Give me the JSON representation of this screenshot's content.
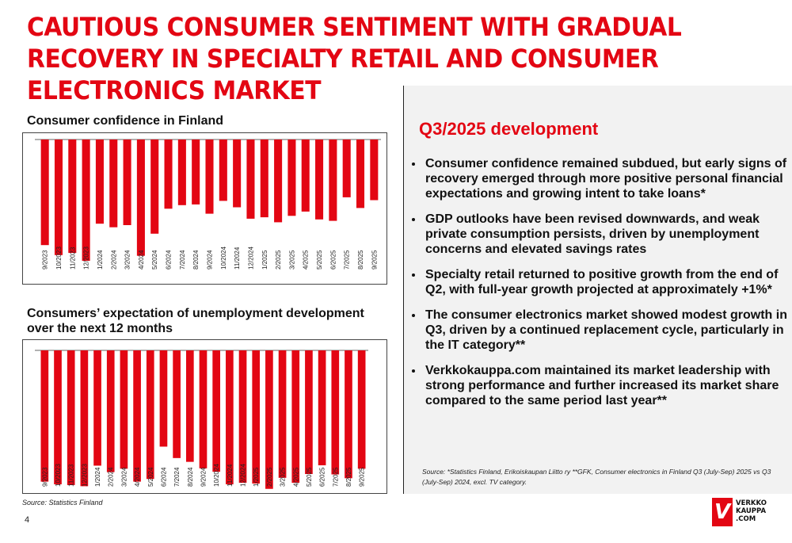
{
  "title": "CAUTIOUS CONSUMER SENTIMENT WITH GRADUAL RECOVERY IN SPECIALTY RETAIL AND CONSUMER ELECTRONICS MARKET",
  "section": {
    "heading": "Q3/2025 development",
    "bullets": [
      "Consumer confidence remained subdued, but early signs of recovery emerged through more positive personal financial expectations and growing intent to take loans*",
      "GDP outlooks have been revised downwards, and weak private consumption persists, driven by unemployment concerns and elevated savings rates",
      "Specialty retail returned to positive growth from the end of Q2, with full-year growth projected at approximately +1%*",
      "The consumer electronics market showed modest growth in Q3, driven by a continued replacement cycle, particularly in the IT category**",
      "Verkkokauppa.com maintained its market leadership with strong performance and further increased its market share compared to the same period last year**"
    ],
    "footnote": "Source: *Statistics Finland, Erikoiskaupan Liitto ry **GFK, Consumer electronics in Finland Q3 (July-Sep) 2025 vs Q3 (July-Sep) 2024, excl. TV category."
  },
  "source": "Source: Statistics Finland",
  "page_number": "4",
  "logo": {
    "line1": "VERKKO",
    "line2": "KAUPPA",
    "line3": ".COM",
    "mark": "V"
  },
  "colors": {
    "accent": "#e30613",
    "panel": "#f2f2f2"
  },
  "chart_data": [
    {
      "type": "bar",
      "title": "Consumer confidence in Finland",
      "categories": [
        "9/2023",
        "10/2023",
        "11/2023",
        "12/2023",
        "1/2024",
        "2/2024",
        "3/2024",
        "4/2024",
        "5/2024",
        "6/2024",
        "7/2024",
        "8/2024",
        "9/2024",
        "10/2024",
        "11/2024",
        "12/2024",
        "1/2025",
        "2/2025",
        "3/2025",
        "4/2025",
        "5/2025",
        "6/2025",
        "7/2025",
        "8/2025",
        "9/2025"
      ],
      "values": [
        -14.8,
        -16.2,
        -15.9,
        -17.0,
        -11.8,
        -12.3,
        -12.0,
        -16.3,
        -13.2,
        -9.7,
        -9.2,
        -9.1,
        -10.4,
        -8.6,
        -9.5,
        -11.1,
        -10.9,
        -11.6,
        -10.7,
        -10.1,
        -11.2,
        -11.4,
        -8.1,
        -9.6,
        -8.5
      ],
      "ylim": [
        -20,
        0
      ],
      "grid": false,
      "legend": "none"
    },
    {
      "type": "bar",
      "title": "Consumers’ expectation of unemployment development over the next 12 months",
      "categories": [
        "9/2023",
        "10/2023",
        "11/2023",
        "12/2023",
        "1/2024",
        "2/2024",
        "3/2024",
        "4/2024",
        "5/2024",
        "6/2024",
        "7/2024",
        "8/2024",
        "9/2024",
        "10/2024",
        "11/2024",
        "12/2024",
        "1/2025",
        "2/2025",
        "3/2025",
        "4/2025",
        "5/2025",
        "6/2025",
        "7/2025",
        "8/2025",
        "9/2025"
      ],
      "values": [
        -34.5,
        -35.2,
        -35.4,
        -35.7,
        -30.3,
        -32.0,
        -31.1,
        -34.5,
        -33.8,
        -25.3,
        -28.3,
        -29.3,
        -31.0,
        -31.9,
        -35.2,
        -34.8,
        -35.0,
        -36.4,
        -33.5,
        -34.8,
        -32.5,
        -30.2,
        -32.6,
        -33.6,
        -31.1
      ],
      "ylim": [
        -40,
        0
      ],
      "grid": false,
      "legend": "none"
    }
  ]
}
